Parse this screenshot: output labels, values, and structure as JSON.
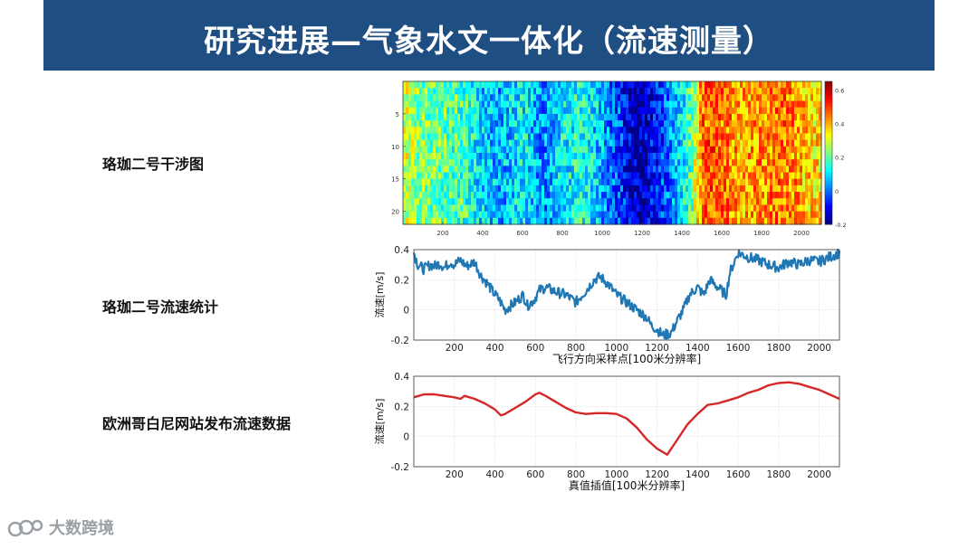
{
  "header": {
    "title": "研究进展—气象水文一体化（流速测量）"
  },
  "labels": {
    "interferogram": "珞珈二号干涉图",
    "stats": "珞珈二号流速统计",
    "ecmwf": "欧洲哥白尼网站发布流速数据"
  },
  "watermark": {
    "text": "大数跨境"
  },
  "colors": {
    "banner": "#1f4e82",
    "line_blue": "#1f77b4",
    "line_red": "#d62728"
  },
  "chart_data": [
    {
      "type": "heatmap",
      "colormap": "jet",
      "x_ticks": [
        "200",
        "400",
        "600",
        "800",
        "1000",
        "1200",
        "1400",
        "1600",
        "1800",
        "2000"
      ],
      "y_ticks": [
        "5",
        "10",
        "15",
        "20"
      ],
      "colorbar_ticks": [
        "0.6",
        "0.4",
        "0.2",
        "0",
        "-0.2"
      ],
      "xlim": [
        0,
        2100
      ],
      "ylim": [
        0,
        22
      ],
      "clim": [
        -0.2,
        0.65
      ],
      "row_profile": {
        "x": [
          0,
          100,
          200,
          300,
          400,
          500,
          600,
          700,
          800,
          900,
          1000,
          1100,
          1150,
          1200,
          1250,
          1300,
          1400,
          1450,
          1500,
          1550,
          1600,
          1700,
          1800,
          1900,
          2000,
          2100
        ],
        "v": [
          0.3,
          0.22,
          0.2,
          0.18,
          0.08,
          0.05,
          0.12,
          0.02,
          0.1,
          0.15,
          0.05,
          -0.05,
          -0.15,
          -0.17,
          -0.1,
          -0.05,
          0.1,
          0.2,
          0.45,
          0.48,
          0.45,
          0.4,
          0.42,
          0.45,
          0.4,
          0.35
        ]
      }
    },
    {
      "type": "line",
      "ylabel": "流速[m/s]",
      "xlabel": "飞行方向采样点[100米分辨率]",
      "xlim": [
        0,
        2100
      ],
      "ylim": [
        -0.2,
        0.4
      ],
      "x_ticks": [
        "200",
        "400",
        "600",
        "800",
        "1000",
        "1200",
        "1400",
        "1600",
        "1800",
        "2000"
      ],
      "y_ticks": [
        "0.4",
        "0.2",
        "0",
        "-0.2"
      ],
      "grid": true,
      "series": [
        {
          "x": [
            0,
            20,
            50,
            80,
            100,
            130,
            150,
            180,
            200,
            230,
            260,
            300,
            330,
            360,
            390,
            420,
            450,
            500,
            540,
            560,
            590,
            620,
            650,
            700,
            750,
            800,
            850,
            890,
            920,
            960,
            1000,
            1050,
            1100,
            1150,
            1170,
            1200,
            1230,
            1270,
            1300,
            1330,
            1360,
            1400,
            1430,
            1460,
            1500,
            1540,
            1560,
            1600,
            1650,
            1700,
            1750,
            1800,
            1850,
            1900,
            1950,
            2000,
            2050,
            2100
          ],
          "y": [
            0.38,
            0.3,
            0.27,
            0.3,
            0.29,
            0.31,
            0.28,
            0.32,
            0.3,
            0.33,
            0.29,
            0.32,
            0.23,
            0.18,
            0.12,
            0.07,
            0.0,
            0.05,
            0.1,
            0.03,
            0.06,
            0.13,
            0.15,
            0.12,
            0.1,
            0.05,
            0.13,
            0.2,
            0.22,
            0.17,
            0.1,
            0.05,
            0.0,
            -0.05,
            -0.1,
            -0.13,
            -0.17,
            -0.15,
            -0.07,
            0.0,
            0.1,
            0.15,
            0.1,
            0.2,
            0.15,
            0.1,
            0.25,
            0.38,
            0.35,
            0.33,
            0.3,
            0.28,
            0.32,
            0.3,
            0.33,
            0.32,
            0.35,
            0.38
          ]
        }
      ]
    },
    {
      "type": "line",
      "ylabel": "流速[m/s]",
      "xlabel": "真值插值[100米分辨率]",
      "xlim": [
        0,
        2100
      ],
      "ylim": [
        -0.2,
        0.4
      ],
      "x_ticks": [
        "200",
        "400",
        "600",
        "800",
        "1000",
        "1200",
        "1400",
        "1600",
        "1800",
        "2000"
      ],
      "y_ticks": [
        "0.4",
        "0.2",
        "0",
        "-0.2"
      ],
      "grid": true,
      "series": [
        {
          "x": [
            0,
            50,
            100,
            150,
            200,
            230,
            250,
            300,
            350,
            400,
            430,
            450,
            500,
            550,
            600,
            620,
            650,
            700,
            750,
            800,
            850,
            900,
            950,
            1000,
            1050,
            1100,
            1150,
            1200,
            1250,
            1300,
            1350,
            1400,
            1450,
            1500,
            1550,
            1600,
            1650,
            1700,
            1750,
            1800,
            1850,
            1900,
            1950,
            2000,
            2050,
            2100
          ],
          "y": [
            0.26,
            0.28,
            0.28,
            0.27,
            0.26,
            0.25,
            0.27,
            0.25,
            0.22,
            0.18,
            0.14,
            0.15,
            0.19,
            0.23,
            0.28,
            0.29,
            0.27,
            0.23,
            0.19,
            0.16,
            0.15,
            0.155,
            0.155,
            0.15,
            0.12,
            0.06,
            -0.02,
            -0.08,
            -0.12,
            -0.02,
            0.08,
            0.15,
            0.21,
            0.22,
            0.24,
            0.26,
            0.29,
            0.31,
            0.34,
            0.355,
            0.36,
            0.35,
            0.33,
            0.31,
            0.28,
            0.25
          ]
        }
      ]
    }
  ]
}
